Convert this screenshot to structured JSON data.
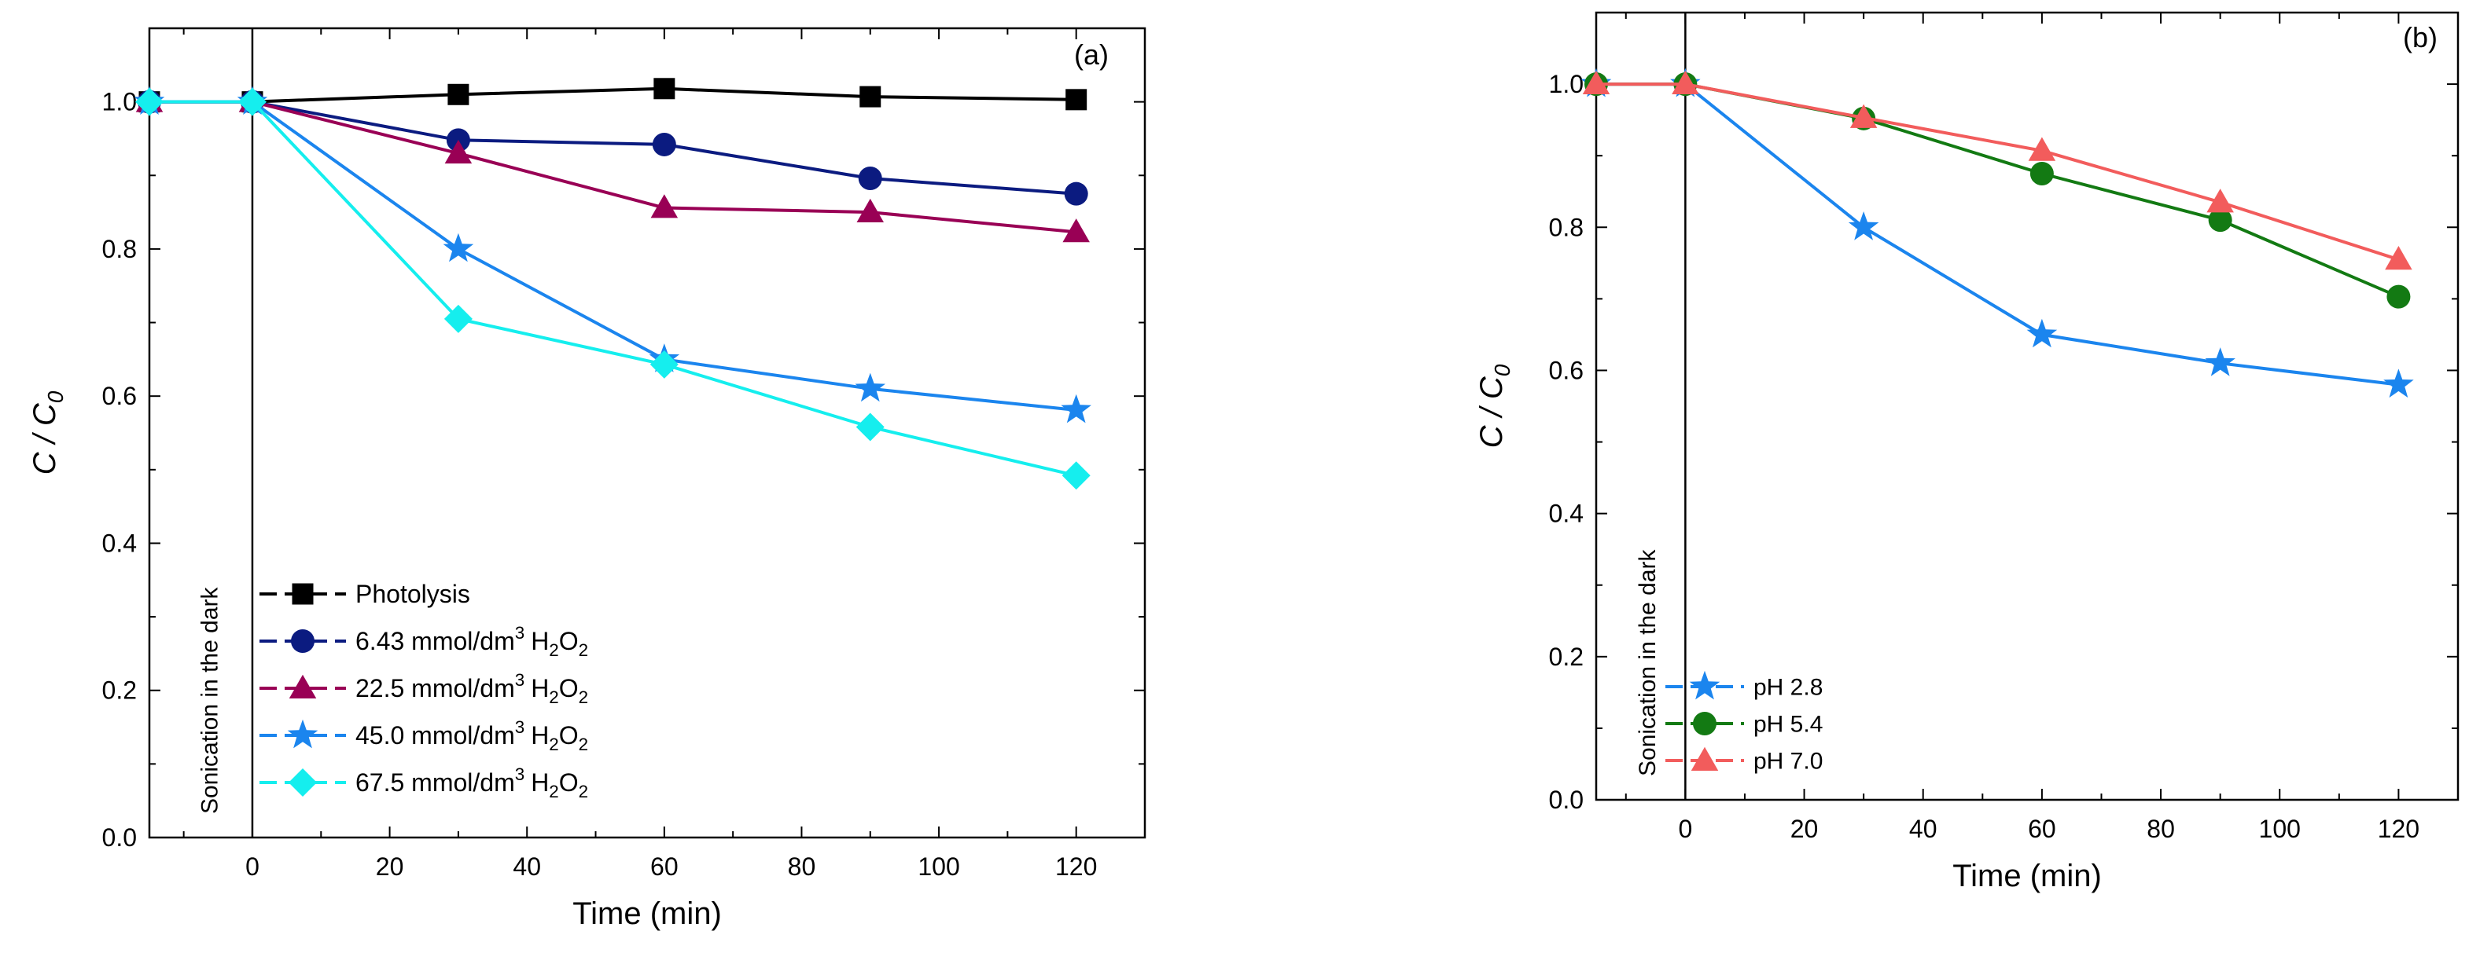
{
  "figure": {
    "sub_label": "0",
    "h2o2_sub": "2",
    "unit_sup": "3"
  },
  "chart_data": [
    {
      "type": "line",
      "panel_label": "(a)",
      "xlabel": "Time (min)",
      "ylabel": "C / C",
      "xlim": [
        -15,
        130
      ],
      "ylim": [
        0,
        1.1
      ],
      "xticks": [
        "0",
        "20",
        "40",
        "60",
        "80",
        "100",
        "120"
      ],
      "yticks": [
        "0.0",
        "0.2",
        "0.4",
        "0.6",
        "0.8",
        "1.0"
      ],
      "annotation": "Sonication in the dark",
      "legend_position": "bottom-left",
      "x": [
        -15,
        0,
        30,
        60,
        90,
        120
      ],
      "series": [
        {
          "name": "Photolysis",
          "legend_text": "Photolysis",
          "marker": "square",
          "color": "#000000",
          "values": [
            1.0,
            1.0,
            1.01,
            1.018,
            1.007,
            1.003
          ]
        },
        {
          "name": "6.43 mmol/dm3 H2O2",
          "legend_text": "6.43 mmol/dm",
          "marker": "circle",
          "color": "#0B1B80",
          "values": [
            1.0,
            1.0,
            0.948,
            0.942,
            0.896,
            0.875
          ]
        },
        {
          "name": "22.5 mmol/dm3 H2O2",
          "legend_text": "22.5 mmol/dm",
          "marker": "triangle",
          "color": "#990055",
          "values": [
            1.0,
            1.0,
            0.93,
            0.856,
            0.85,
            0.823
          ]
        },
        {
          "name": "45.0 mmol/dm3 H2O2",
          "legend_text": "45.0 mmol/dm",
          "marker": "star",
          "color": "#1B85EE",
          "values": [
            1.0,
            1.0,
            0.8,
            0.65,
            0.61,
            0.581
          ]
        },
        {
          "name": "67.5 mmol/dm3 H2O2",
          "legend_text": "67.5 mmol/dm",
          "marker": "diamond",
          "color": "#15EEEE",
          "values": [
            1.0,
            1.0,
            0.705,
            0.643,
            0.558,
            0.492
          ]
        }
      ]
    },
    {
      "type": "line",
      "panel_label": "(b)",
      "xlabel": "Time (min)",
      "ylabel": "C / C",
      "xlim": [
        -15,
        130
      ],
      "ylim": [
        0,
        1.1
      ],
      "xticks": [
        "0",
        "20",
        "40",
        "60",
        "80",
        "100",
        "120"
      ],
      "yticks": [
        "0.0",
        "0.2",
        "0.4",
        "0.6",
        "0.8",
        "1.0"
      ],
      "annotation": "Sonication in the dark",
      "legend_position": "bottom-left",
      "x": [
        -15,
        0,
        30,
        60,
        90,
        120
      ],
      "series": [
        {
          "name": "pH 2.8",
          "legend_text": "pH 2.8",
          "marker": "star",
          "color": "#1B85EE",
          "values": [
            1.0,
            1.0,
            0.8,
            0.65,
            0.61,
            0.58
          ]
        },
        {
          "name": "pH 5.4",
          "legend_text": "pH 5.4",
          "marker": "circle",
          "color": "#137A13",
          "values": [
            1.0,
            1.0,
            0.952,
            0.875,
            0.81,
            0.703
          ]
        },
        {
          "name": "pH 7.0",
          "legend_text": "pH 7.0",
          "marker": "triangle",
          "color": "#F25C5C",
          "values": [
            1.0,
            1.0,
            0.953,
            0.907,
            0.835,
            0.755
          ]
        }
      ]
    }
  ]
}
